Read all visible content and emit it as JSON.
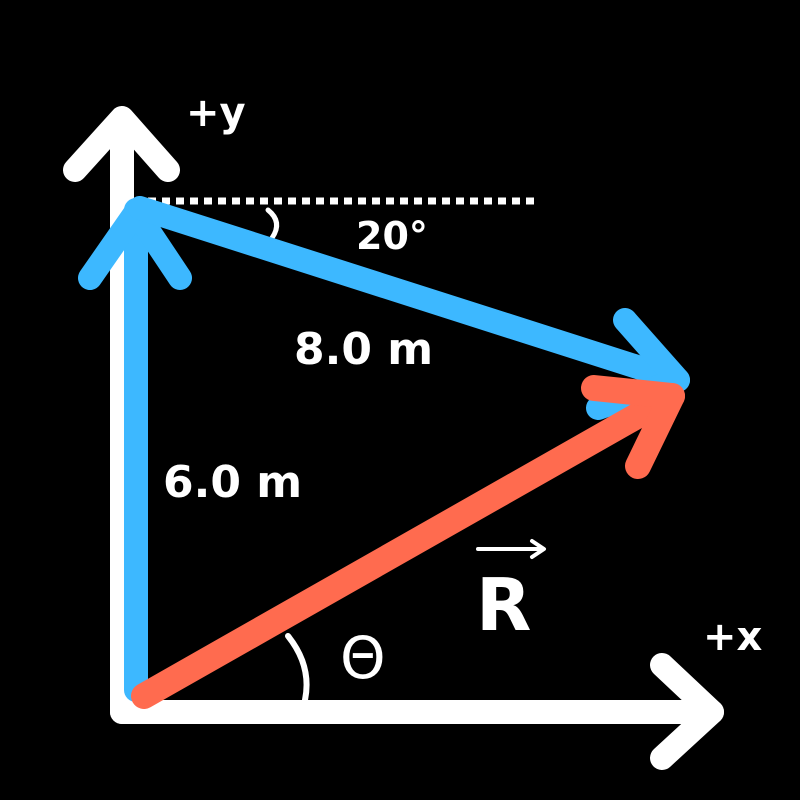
{
  "labels": {
    "y_axis": "+y",
    "x_axis": "+x",
    "angle_top": "20°",
    "vector_diagonal": "8.0 m",
    "vector_vertical": "6.0 m",
    "resultant": "R",
    "theta": "Θ"
  },
  "colors": {
    "background": "#000000",
    "axes": "#ffffff",
    "component_vectors": "#3db8ff",
    "resultant_vector": "#ff6b4f"
  }
}
